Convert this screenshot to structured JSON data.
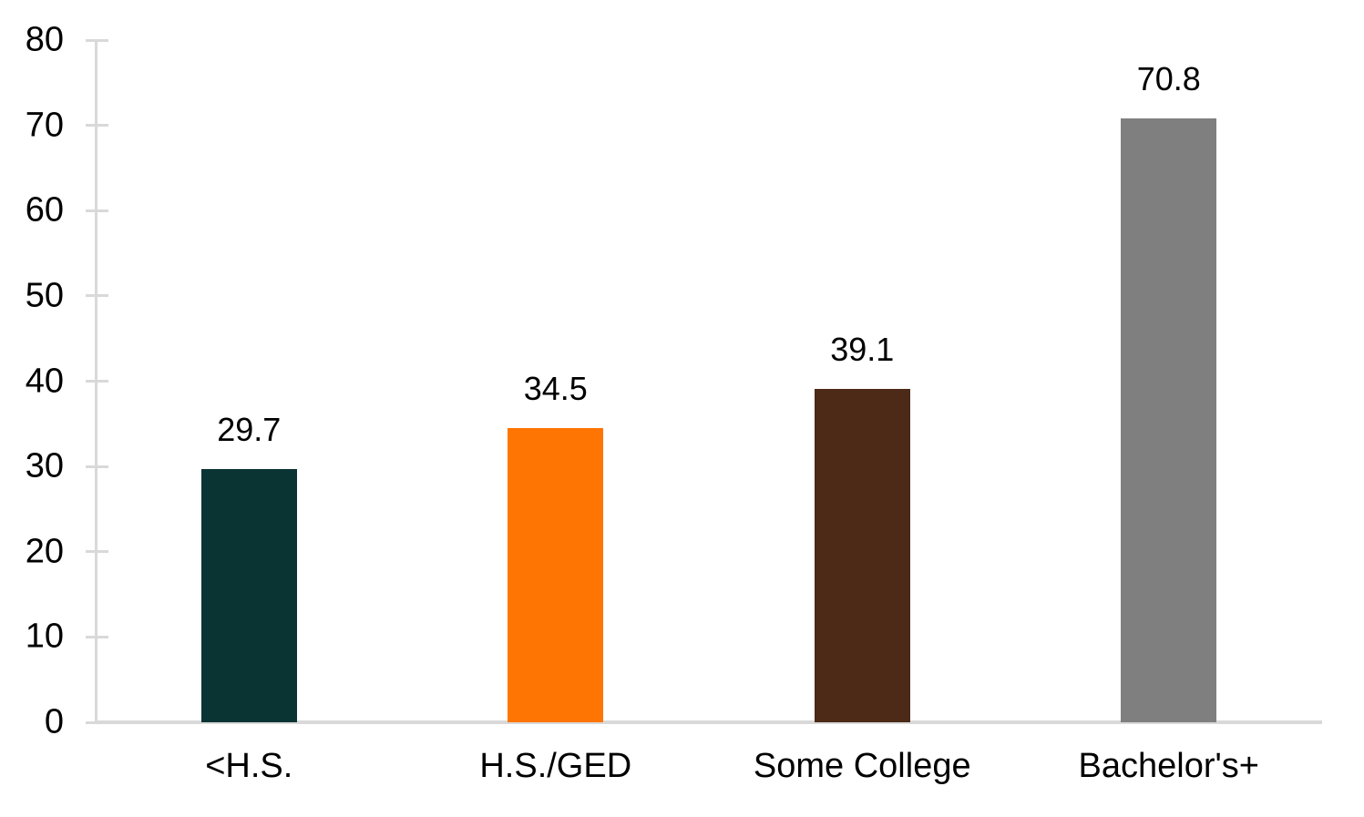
{
  "chart_data": {
    "type": "bar",
    "categories": [
      "<H.S.",
      "H.S./GED",
      "Some College",
      "Bachelor's+"
    ],
    "values": [
      29.7,
      34.5,
      39.1,
      70.8
    ],
    "value_labels": [
      "29.7",
      "34.5",
      "39.1",
      "70.8"
    ],
    "bar_colors": [
      "#093433",
      "#ff7503",
      "#4c2a17",
      "#7f7f7f"
    ],
    "title": "",
    "xlabel": "",
    "ylabel": "",
    "ylim": [
      0,
      80
    ],
    "yticks": [
      0,
      10,
      20,
      30,
      40,
      50,
      60,
      70,
      80
    ],
    "grid": false,
    "legend": false,
    "axis_color": "#d9d9d9",
    "text_color": "#000000",
    "background_color": "#ffffff"
  }
}
